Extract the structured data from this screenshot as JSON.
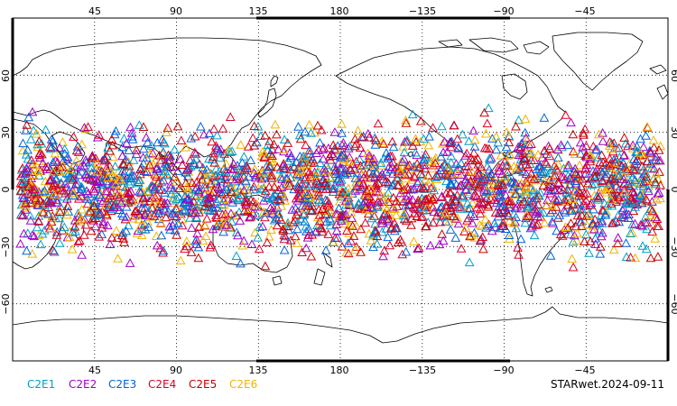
{
  "map": {
    "projection": "cylindrical",
    "center_longitude": 180,
    "longitude_range": [
      0,
      360
    ],
    "latitude_range": [
      -90,
      90
    ],
    "gridlines": "dotted",
    "coastlines": true
  },
  "axes": {
    "top_ticks": [
      "45",
      "90",
      "135",
      "180",
      "−135",
      "−90",
      "−45"
    ],
    "bottom_ticks": [
      "45",
      "90",
      "135",
      "180",
      "−135",
      "−90",
      "−45"
    ],
    "left_ticks": [
      "60",
      "30",
      "0",
      "−30",
      "−60"
    ],
    "right_ticks": [
      "60",
      "30",
      "0",
      "−30",
      "−60"
    ]
  },
  "legend": {
    "items": [
      {
        "label": "C2E1",
        "color": "#00a0c8"
      },
      {
        "label": "C2E2",
        "color": "#a000c8"
      },
      {
        "label": "C2E3",
        "color": "#0064dc"
      },
      {
        "label": "C2E4",
        "color": "#dc0028"
      },
      {
        "label": "C2E5",
        "color": "#c80000"
      },
      {
        "label": "C2E6",
        "color": "#f0b400"
      }
    ]
  },
  "footer": {
    "product_label": "STARwet.2024-09-11"
  },
  "observations": {
    "marker": "open-triangle",
    "latitude_band": [
      -45,
      45
    ],
    "series": [
      "C2E1",
      "C2E2",
      "C2E3",
      "C2E4",
      "C2E5",
      "C2E6"
    ]
  }
}
